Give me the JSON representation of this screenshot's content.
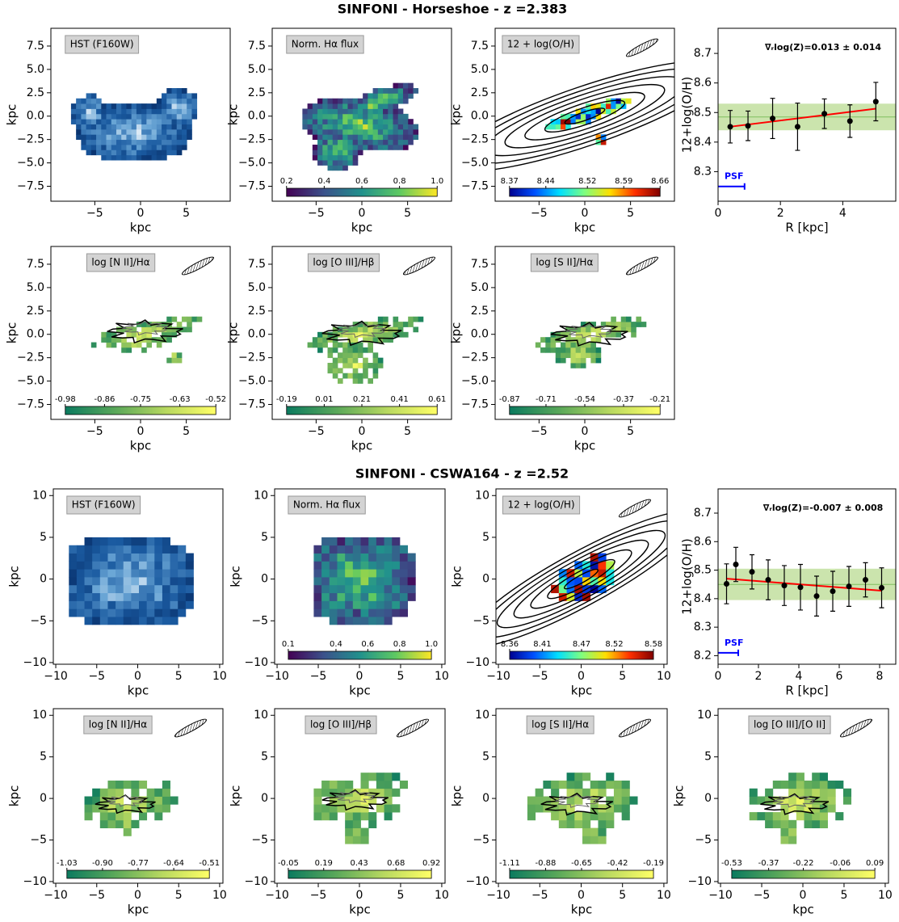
{
  "figure_titles": [
    "SINFONI - Horseshoe - z =2.383",
    "SINFONI - CSWA164 - z =2.52"
  ],
  "chart_data": [
    {
      "type": "heatmap",
      "label": "HST (F160W)",
      "xlabel": "kpc",
      "ylabel": "kpc",
      "xlim": [
        -9.8,
        9.8
      ],
      "ylim": [
        -9.1,
        9.4
      ],
      "xticks": [
        {
          "value": -5,
          "label": "−5"
        },
        0,
        5
      ],
      "yticks": [
        {
          "value": -7.5,
          "label": "−7.5"
        },
        {
          "value": -5,
          "label": "−5.0"
        },
        {
          "value": -2.5,
          "label": "−2.5"
        },
        {
          "value": 0,
          "label": "0.0"
        },
        2.5,
        {
          "value": 5,
          "label": "5.0"
        },
        7.5
      ],
      "colormap": [
        "#08306b",
        "#1a5aa0",
        "#6aa6d6",
        "#ffffff"
      ]
    },
    {
      "type": "heatmap",
      "label": "Norm. Hα flux",
      "xlabel": "kpc",
      "ylabel": "kpc",
      "xlim": [
        -9.8,
        9.8
      ],
      "ylim": [
        -9.1,
        9.4
      ],
      "xticks": [
        {
          "value": -5,
          "label": "−5"
        },
        0,
        5
      ],
      "yticks": [
        {
          "value": -7.5,
          "label": "−7.5"
        },
        {
          "value": -5,
          "label": "−5.0"
        },
        {
          "value": -2.5,
          "label": "−2.5"
        },
        {
          "value": 0,
          "label": "0.0"
        },
        2.5,
        {
          "value": 5,
          "label": "5.0"
        },
        7.5
      ],
      "colormap": [
        "#440154",
        "#3b528b",
        "#21918c",
        "#5ec962",
        "#fde725"
      ],
      "clim": [
        0.2,
        1.0
      ],
      "cticks": [
        0.2,
        0.4,
        0.6,
        0.8,
        {
          "value": 1.0,
          "label": "1.0"
        }
      ]
    },
    {
      "type": "heatmap",
      "label": "12 + log(O/H)",
      "xlabel": "kpc",
      "ylabel": "kpc",
      "xlim": [
        -9.8,
        9.8
      ],
      "ylim": [
        -9.1,
        9.4
      ],
      "xticks": [
        {
          "value": -5,
          "label": "−5"
        },
        0,
        5
      ],
      "yticks": [
        {
          "value": -7.5,
          "label": "−7.5"
        },
        {
          "value": -5,
          "label": "−5.0"
        },
        {
          "value": -2.5,
          "label": "−2.5"
        },
        {
          "value": 0,
          "label": "0.0"
        },
        2.5,
        {
          "value": 5,
          "label": "5.0"
        },
        7.5
      ],
      "colormap": [
        "#00008f",
        "#0050ff",
        "#00dfff",
        "#7fff7f",
        "#ffdf00",
        "#ff3000",
        "#800000"
      ],
      "clim": [
        8.37,
        8.66
      ],
      "cticks": [
        8.37,
        8.44,
        8.52,
        8.59,
        8.66
      ]
    },
    {
      "type": "scatter",
      "annotation": "∇ᵣlog(Z)=0.013 ± 0.014",
      "xlabel": "R [kpc]",
      "ylabel": "12+log(O/H)",
      "xlim": [
        0,
        5.7
      ],
      "ylim": [
        8.2,
        8.785
      ],
      "xticks": [
        0,
        2,
        4
      ],
      "yticks": [
        8.3,
        8.4,
        8.5,
        8.6,
        8.7
      ],
      "x": [
        0.39,
        0.96,
        1.75,
        2.55,
        3.41,
        4.23,
        5.06
      ],
      "values": [
        8.452,
        8.455,
        8.48,
        8.452,
        8.496,
        8.471,
        8.537
      ],
      "errors": [
        0.055,
        0.05,
        0.068,
        0.08,
        0.05,
        0.055,
        0.065
      ],
      "color": "#000000",
      "fit": {
        "x": [
          0.39,
          5.06
        ],
        "y": [
          8.452,
          8.513
        ],
        "color": "#ff0000"
      },
      "band": [
        8.44,
        8.53
      ],
      "mean": 8.485,
      "band_color": "#b5d98a",
      "psf": {
        "label": "PSF",
        "x": [
          0,
          0.85
        ],
        "y": 8.25,
        "color": "#0000ff"
      }
    },
    {
      "type": "heatmap",
      "label": "log [N II]/Hα",
      "xlabel": "kpc",
      "ylabel": "kpc",
      "xlim": [
        -9.8,
        9.8
      ],
      "ylim": [
        -9.1,
        9.4
      ],
      "xticks": [
        {
          "value": -5,
          "label": "−5"
        },
        0,
        5
      ],
      "yticks": [
        {
          "value": -7.5,
          "label": "−7.5"
        },
        {
          "value": -5,
          "label": "−5.0"
        },
        {
          "value": -2.5,
          "label": "−2.5"
        },
        {
          "value": 0,
          "label": "0.0"
        },
        2.5,
        {
          "value": 5,
          "label": "5.0"
        },
        7.5
      ],
      "colormap": [
        "#0b7a5f",
        "#5aa85a",
        "#b7d860",
        "#ffff66"
      ],
      "clim": [
        -0.98,
        -0.52
      ],
      "cticks": [
        -0.98,
        -0.86,
        -0.75,
        -0.63,
        -0.52
      ]
    },
    {
      "type": "heatmap",
      "label": "log [O III]/Hβ",
      "xlabel": "kpc",
      "ylabel": "kpc",
      "xlim": [
        -9.8,
        9.8
      ],
      "ylim": [
        -9.1,
        9.4
      ],
      "xticks": [
        {
          "value": -5,
          "label": "−5"
        },
        0,
        5
      ],
      "yticks": [
        {
          "value": -7.5,
          "label": "−7.5"
        },
        {
          "value": -5,
          "label": "−5.0"
        },
        {
          "value": -2.5,
          "label": "−2.5"
        },
        {
          "value": 0,
          "label": "0.0"
        },
        2.5,
        {
          "value": 5,
          "label": "5.0"
        },
        7.5
      ],
      "colormap": [
        "#0b7a5f",
        "#5aa85a",
        "#b7d860",
        "#ffff66"
      ],
      "clim": [
        -0.19,
        0.61
      ],
      "cticks": [
        -0.19,
        0.01,
        0.21,
        0.41,
        0.61
      ]
    },
    {
      "type": "heatmap",
      "label": "log [S II]/Hα",
      "xlabel": "kpc",
      "ylabel": "kpc",
      "xlim": [
        -9.8,
        9.8
      ],
      "ylim": [
        -9.1,
        9.4
      ],
      "xticks": [
        {
          "value": -5,
          "label": "−5"
        },
        0,
        5
      ],
      "yticks": [
        {
          "value": -7.5,
          "label": "−7.5"
        },
        {
          "value": -5,
          "label": "−5.0"
        },
        {
          "value": -2.5,
          "label": "−2.5"
        },
        {
          "value": 0,
          "label": "0.0"
        },
        2.5,
        {
          "value": 5,
          "label": "5.0"
        },
        7.5
      ],
      "colormap": [
        "#0b7a5f",
        "#5aa85a",
        "#b7d860",
        "#ffff66"
      ],
      "clim": [
        -0.87,
        -0.21
      ],
      "cticks": [
        -0.87,
        -0.71,
        -0.54,
        -0.37,
        -0.21
      ]
    },
    {
      "type": "heatmap",
      "label": "HST (F160W)",
      "xlabel": "kpc",
      "ylabel": "kpc",
      "xlim": [
        -10.3,
        10.4
      ],
      "ylim": [
        -10.2,
        10.8
      ],
      "xticks": [
        {
          "value": -10,
          "label": "−10"
        },
        {
          "value": -5,
          "label": "−5"
        },
        0,
        5,
        10
      ],
      "yticks": [
        {
          "value": -10,
          "label": "−10"
        },
        {
          "value": -5,
          "label": "−5"
        },
        0,
        5,
        10
      ],
      "colormap": [
        "#08306b",
        "#1a5aa0",
        "#6aa6d6",
        "#ffffff"
      ]
    },
    {
      "type": "heatmap",
      "label": "Norm. Hα flux",
      "xlabel": "kpc",
      "ylabel": "kpc",
      "xlim": [
        -10.3,
        10.4
      ],
      "ylim": [
        -10.2,
        10.8
      ],
      "xticks": [
        {
          "value": -10,
          "label": "−10"
        },
        {
          "value": -5,
          "label": "−5"
        },
        0,
        5,
        10
      ],
      "yticks": [
        {
          "value": -10,
          "label": "−10"
        },
        {
          "value": -5,
          "label": "−5"
        },
        0,
        5,
        10
      ],
      "colormap": [
        "#440154",
        "#3b528b",
        "#21918c",
        "#5ec962",
        "#fde725"
      ],
      "clim": [
        0.1,
        1.0
      ],
      "cticks": [
        0.1,
        0.4,
        0.6,
        0.8,
        {
          "value": 1.0,
          "label": "1.0"
        }
      ]
    },
    {
      "type": "heatmap",
      "label": "12 + log(O/H)",
      "xlabel": "kpc",
      "ylabel": "kpc",
      "xlim": [
        -10.3,
        10.4
      ],
      "ylim": [
        -10.2,
        10.8
      ],
      "xticks": [
        {
          "value": -10,
          "label": "−10"
        },
        {
          "value": -5,
          "label": "−5"
        },
        0,
        5,
        10
      ],
      "yticks": [
        {
          "value": -10,
          "label": "−10"
        },
        {
          "value": -5,
          "label": "−5"
        },
        0,
        5,
        10
      ],
      "colormap": [
        "#00008f",
        "#0050ff",
        "#00dfff",
        "#7fff7f",
        "#ffdf00",
        "#ff3000",
        "#800000"
      ],
      "clim": [
        8.36,
        8.58
      ],
      "cticks": [
        8.36,
        8.41,
        8.47,
        8.52,
        8.58
      ]
    },
    {
      "type": "scatter",
      "annotation": "∇ᵣlog(Z)=-0.007 ± 0.008",
      "xlabel": "R [kpc]",
      "ylabel": "12+log(O/H)",
      "xlim": [
        0,
        8.8
      ],
      "ylim": [
        8.17,
        8.785
      ],
      "xticks": [
        0,
        2,
        4,
        6,
        8
      ],
      "yticks": [
        8.2,
        8.3,
        8.4,
        8.5,
        8.6,
        8.7
      ],
      "x": [
        0.42,
        0.88,
        1.68,
        2.48,
        3.28,
        4.08,
        4.88,
        5.68,
        6.48,
        7.3,
        8.1
      ],
      "values": [
        8.452,
        8.52,
        8.494,
        8.466,
        8.446,
        8.44,
        8.409,
        8.426,
        8.443,
        8.466,
        8.438
      ],
      "errors": [
        0.07,
        0.06,
        0.06,
        0.07,
        0.07,
        0.08,
        0.07,
        0.07,
        0.07,
        0.06,
        0.07
      ],
      "color": "#000000",
      "fit": {
        "x": [
          0.42,
          8.1
        ],
        "y": [
          8.47,
          8.428
        ],
        "color": "#ff0000"
      },
      "band": [
        8.395,
        8.505
      ],
      "mean": 8.45,
      "band_color": "#b5d98a",
      "psf": {
        "label": "PSF",
        "x": [
          0,
          1.0
        ],
        "y": 8.21,
        "color": "#0000ff"
      }
    },
    {
      "type": "heatmap",
      "label": "log [N II]/Hα",
      "xlabel": "kpc",
      "ylabel": "kpc",
      "xlim": [
        -10.3,
        10.4
      ],
      "ylim": [
        -10.2,
        10.8
      ],
      "xticks": [
        {
          "value": -10,
          "label": "−10"
        },
        {
          "value": -5,
          "label": "−5"
        },
        0,
        5,
        10
      ],
      "yticks": [
        {
          "value": -10,
          "label": "−10"
        },
        {
          "value": -5,
          "label": "−5"
        },
        0,
        5,
        10
      ],
      "colormap": [
        "#0b7a5f",
        "#5aa85a",
        "#b7d860",
        "#ffff66"
      ],
      "clim": [
        -1.03,
        -0.51
      ],
      "cticks": [
        -1.03,
        {
          "value": -0.9,
          "label": "-0.90"
        },
        -0.77,
        -0.64,
        -0.51
      ]
    },
    {
      "type": "heatmap",
      "label": "log [O III]/Hβ",
      "xlabel": "kpc",
      "ylabel": "kpc",
      "xlim": [
        -10.3,
        10.4
      ],
      "ylim": [
        -10.2,
        10.8
      ],
      "xticks": [
        {
          "value": -10,
          "label": "−10"
        },
        {
          "value": -5,
          "label": "−5"
        },
        0,
        5,
        10
      ],
      "yticks": [
        {
          "value": -10,
          "label": "−10"
        },
        {
          "value": -5,
          "label": "−5"
        },
        0,
        5,
        10
      ],
      "colormap": [
        "#0b7a5f",
        "#5aa85a",
        "#b7d860",
        "#ffff66"
      ],
      "clim": [
        -0.05,
        0.92
      ],
      "cticks": [
        -0.05,
        0.19,
        0.43,
        0.68,
        0.92
      ]
    },
    {
      "type": "heatmap",
      "label": "log [S II]/Hα",
      "xlabel": "kpc",
      "ylabel": "kpc",
      "xlim": [
        -10.3,
        10.4
      ],
      "ylim": [
        -10.2,
        10.8
      ],
      "xticks": [
        {
          "value": -10,
          "label": "−10"
        },
        {
          "value": -5,
          "label": "−5"
        },
        0,
        5,
        10
      ],
      "yticks": [
        {
          "value": -10,
          "label": "−10"
        },
        {
          "value": -5,
          "label": "−5"
        },
        0,
        5,
        10
      ],
      "colormap": [
        "#0b7a5f",
        "#5aa85a",
        "#b7d860",
        "#ffff66"
      ],
      "clim": [
        -1.11,
        -0.19
      ],
      "cticks": [
        -1.11,
        -0.88,
        -0.65,
        -0.42,
        -0.19
      ]
    },
    {
      "type": "heatmap",
      "label": "log [O III]/[O II]",
      "xlabel": "kpc",
      "ylabel": "kpc",
      "xlim": [
        -10.3,
        10.4
      ],
      "ylim": [
        -10.2,
        10.8
      ],
      "xticks": [
        {
          "value": -10,
          "label": "−10"
        },
        {
          "value": -5,
          "label": "−5"
        },
        0,
        5,
        10
      ],
      "yticks": [
        {
          "value": -10,
          "label": "−10"
        },
        {
          "value": -5,
          "label": "−5"
        },
        0,
        5,
        10
      ],
      "colormap": [
        "#0b7a5f",
        "#5aa85a",
        "#b7d860",
        "#ffff66"
      ],
      "clim": [
        -0.53,
        0.09
      ],
      "cticks": [
        -0.53,
        -0.37,
        -0.22,
        -0.06,
        0.09
      ]
    }
  ]
}
